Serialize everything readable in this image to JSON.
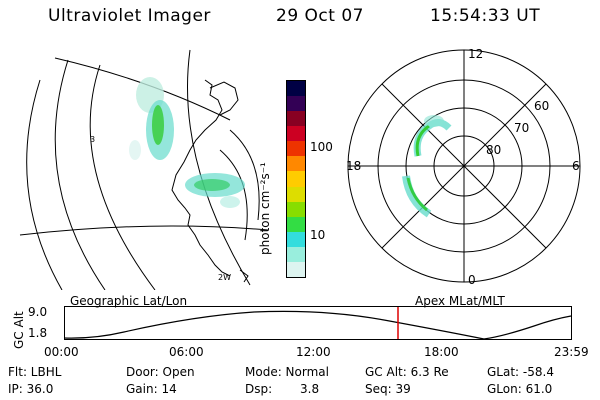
{
  "header": {
    "instrument": "Ultraviolet Imager",
    "date": "29 Oct 07",
    "time": "15:54:33 UT"
  },
  "geo_panel": {
    "caption": "Geographic Lat/Lon",
    "grid_label_left": "3",
    "grid_label_bottom": "2W"
  },
  "colorbar": {
    "unit_label": "photon cm⁻²s⁻¹",
    "ticks": [
      "100",
      "10"
    ],
    "colors": [
      "#000044",
      "#330055",
      "#880022",
      "#cc0022",
      "#ee3300",
      "#ff8800",
      "#ffcc00",
      "#dddd00",
      "#88dd00",
      "#33dd44",
      "#33dddd",
      "#99eedd",
      "#ddf4f0"
    ]
  },
  "polar_panel": {
    "caption": "Apex MLat/MLT",
    "mlt_labels": {
      "top": "12",
      "bottom": "0",
      "left": "18",
      "right": "6"
    },
    "lat_labels": [
      "60",
      "70",
      "80"
    ]
  },
  "orbit_plot": {
    "ylabel": "GC Alt",
    "y_ticks": [
      "9.0",
      "1.8"
    ],
    "x_ticks": [
      "00:00",
      "06:00",
      "12:00",
      "18:00",
      "23:59"
    ],
    "marker_color": "#dd0000"
  },
  "info": {
    "flt": "Flt: LBHL",
    "ip": "IP: 36.0",
    "door": "Door: Open",
    "gain": "Gain: 14",
    "mode": "Mode: Normal",
    "dsp": "Dsp:",
    "dsp_value": "3.8",
    "gc_alt": "GC Alt: 6.3 Re",
    "seq": "Seq: 39",
    "glat": "GLat: -58.4",
    "glon": "GLon: 61.0"
  }
}
